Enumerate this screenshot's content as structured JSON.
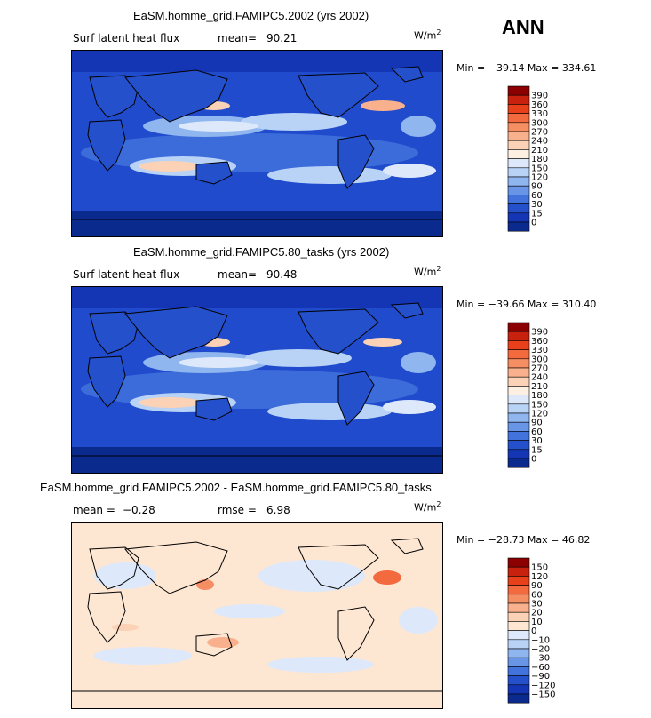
{
  "ann": "ANN",
  "units_base": "W/m",
  "units_exp": "2",
  "panels": [
    {
      "title": "EaSM.homme_grid.FAMIPC5.2002 (yrs 2002)",
      "variable": "Surf latent heat flux",
      "stat1_label": "mean=",
      "stat1_value": "90.21",
      "stat2_label": "",
      "stat2_value": "",
      "min_max": "Min = −39.14 Max = 334.61"
    },
    {
      "title": "EaSM.homme_grid.FAMIPC5.80_tasks (yrs 2002)",
      "variable": "Surf latent heat flux",
      "stat1_label": "mean=",
      "stat1_value": "90.48",
      "stat2_label": "",
      "stat2_value": "",
      "min_max": "Min = −39.66 Max = 310.40"
    },
    {
      "title": "EaSM.homme_grid.FAMIPC5.2002 - EaSM.homme_grid.FAMIPC5.80_tasks",
      "variable": "",
      "stat1_label": "mean =",
      "stat1_value": "−0.28",
      "stat2_label": "rmse =",
      "stat2_value": "6.98",
      "min_max": "Min = −28.73 Max =  46.82"
    }
  ],
  "chart_data": [
    {
      "type": "heatmap",
      "title": "EaSM.homme_grid.FAMIPC5.2002 (yrs 2002)",
      "variable": "Surf latent heat flux",
      "units": "W/m2",
      "mean": 90.21,
      "min": -39.14,
      "max": 334.61,
      "colorbar_levels": [
        "390",
        "360",
        "330",
        "300",
        "270",
        "240",
        "210",
        "180",
        "150",
        "120",
        "90",
        "60",
        "30",
        "15",
        "0"
      ],
      "colorbar_colors": [
        "#8b0000",
        "#c8220e",
        "#e8401a",
        "#f26a3d",
        "#f68e63",
        "#f9b08c",
        "#fbd2b5",
        "#fdf0e2",
        "#dde9fb",
        "#b9d3f7",
        "#90b6f0",
        "#6895e6",
        "#4272dc",
        "#2550cc",
        "#1536b4",
        "#0b2a8e"
      ]
    },
    {
      "type": "heatmap",
      "title": "EaSM.homme_grid.FAMIPC5.80_tasks (yrs 2002)",
      "variable": "Surf latent heat flux",
      "units": "W/m2",
      "mean": 90.48,
      "min": -39.66,
      "max": 310.4,
      "colorbar_levels": [
        "390",
        "360",
        "330",
        "300",
        "270",
        "240",
        "210",
        "180",
        "150",
        "120",
        "90",
        "60",
        "30",
        "15",
        "0"
      ],
      "colorbar_colors": [
        "#8b0000",
        "#c8220e",
        "#e8401a",
        "#f26a3d",
        "#f68e63",
        "#f9b08c",
        "#fbd2b5",
        "#fdf0e2",
        "#dde9fb",
        "#b9d3f7",
        "#90b6f0",
        "#6895e6",
        "#4272dc",
        "#2550cc",
        "#1536b4",
        "#0b2a8e"
      ]
    },
    {
      "type": "heatmap",
      "title": "EaSM.homme_grid.FAMIPC5.2002 - EaSM.homme_grid.FAMIPC5.80_tasks",
      "units": "W/m2",
      "mean": -0.28,
      "rmse": 6.98,
      "min": -28.73,
      "max": 46.82,
      "colorbar_levels": [
        "150",
        "120",
        "90",
        "60",
        "30",
        "20",
        "10",
        "0",
        "−10",
        "−20",
        "−30",
        "−60",
        "−90",
        "−120",
        "−150"
      ],
      "colorbar_colors": [
        "#8b0000",
        "#c8220e",
        "#e8401a",
        "#f26a3d",
        "#f68e63",
        "#f9b08c",
        "#fbd2b5",
        "#fde6d2",
        "#dde9fb",
        "#b9d3f7",
        "#90b6f0",
        "#6895e6",
        "#4272dc",
        "#2550cc",
        "#1536b4",
        "#0b2a8e"
      ]
    }
  ]
}
